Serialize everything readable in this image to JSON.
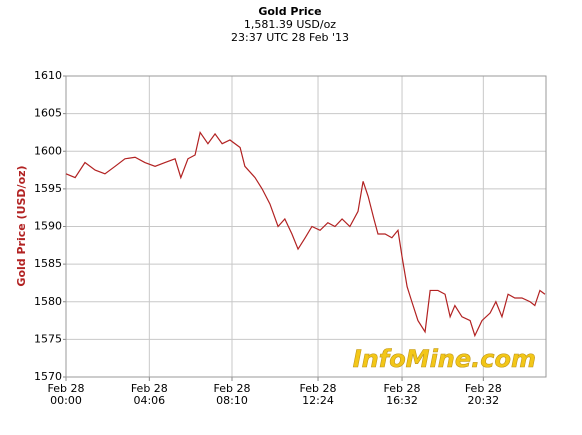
{
  "chart_data": {
    "type": "line",
    "title": "Gold Price",
    "subtitle": "1,581.39 USD/oz",
    "timestamp": "23:37 UTC 28 Feb '13",
    "y_label": "Gold Price (USD/oz)",
    "watermark": "InfoMine.com",
    "color": "#b22222",
    "grid": true,
    "x": [
      0,
      27,
      56,
      86,
      115,
      145,
      174,
      204,
      233,
      263,
      292,
      322,
      339,
      360,
      381,
      396,
      419,
      440,
      461,
      484,
      514,
      528,
      558,
      579,
      602,
      626,
      646,
      667,
      685,
      706,
      726,
      750,
      773,
      794,
      815,
      838,
      862,
      877,
      892,
      909,
      921,
      942,
      962,
      980,
      992,
      1007,
      1021,
      1039,
      1060,
      1075,
      1098,
      1119,
      1134,
      1148,
      1169,
      1193,
      1207,
      1228,
      1252,
      1269,
      1287,
      1305,
      1325,
      1346,
      1370,
      1384,
      1399,
      1414
    ],
    "values": [
      1597,
      1596.5,
      1598.5,
      1597.5,
      1597,
      1598,
      1599,
      1599.2,
      1598.5,
      1598,
      1598.5,
      1599,
      1596.5,
      1599,
      1599.5,
      1602.5,
      1601,
      1602.3,
      1601,
      1601.5,
      1600.5,
      1598,
      1596.5,
      1595,
      1593,
      1590,
      1591,
      1589,
      1587,
      1588.5,
      1590,
      1589.5,
      1590.5,
      1590,
      1591,
      1590,
      1592,
      1596,
      1594,
      1591,
      1589,
      1589,
      1588.5,
      1589.5,
      1586,
      1582,
      1580,
      1577.5,
      1576,
      1581.5,
      1581.5,
      1581,
      1578,
      1579.5,
      1578,
      1577.5,
      1575.5,
      1577.5,
      1578.5,
      1580,
      1578,
      1581,
      1580.5,
      1580.5,
      1580,
      1579.5,
      1581.5,
      1581
    ],
    "xlim": [
      0,
      1417
    ],
    "xticks": [
      {
        "value": 0,
        "label": "Feb 28\n00:00"
      },
      {
        "value": 246,
        "label": "Feb 28\n04:06"
      },
      {
        "value": 490,
        "label": "Feb 28\n08:10"
      },
      {
        "value": 744,
        "label": "Feb 28\n12:24"
      },
      {
        "value": 992,
        "label": "Feb 28\n16:32"
      },
      {
        "value": 1232,
        "label": "Feb 28\n20:32"
      }
    ],
    "ylim": [
      1570,
      1610
    ],
    "yticks": [
      1570,
      1575,
      1580,
      1585,
      1590,
      1595,
      1600,
      1605,
      1610
    ]
  }
}
